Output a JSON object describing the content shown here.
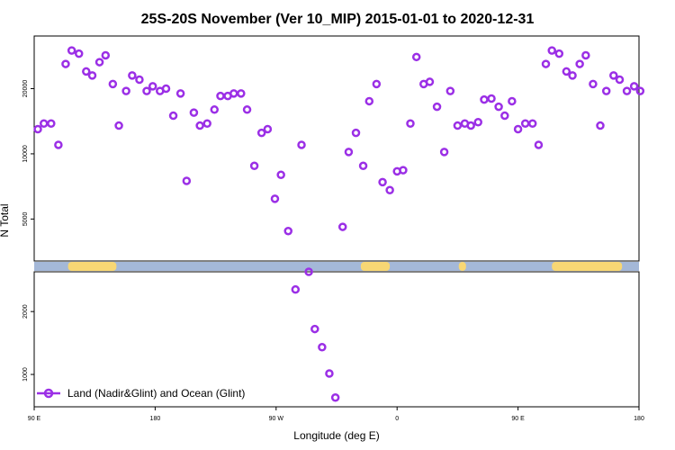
{
  "chart_data": {
    "type": "scatter",
    "title": "25S-20S November (Ver 10_MIP)   2015-01-01 to 2020-12-31",
    "xlabel": "Longitude (deg E)",
    "ylabel": "N Total",
    "xlim": [
      0,
      500
    ],
    "x_ticks": [
      {
        "value": 0,
        "label": "90 E"
      },
      {
        "value": 100,
        "label": "180"
      },
      {
        "value": 200,
        "label": "90 W"
      },
      {
        "value": 300,
        "label": "0"
      },
      {
        "value": 400,
        "label": "90 E"
      },
      {
        "value": 500,
        "label": "180"
      }
    ],
    "y_scale": "log",
    "upper_panel": {
      "ylim": [
        3200,
        35000
      ],
      "y_ticks": [
        {
          "value": 5000,
          "label": "5000"
        },
        {
          "value": 10000,
          "label": "10000"
        },
        {
          "value": 20000,
          "label": "20000"
        }
      ]
    },
    "lower_panel": {
      "ylim": [
        700,
        3100
      ],
      "y_ticks": [
        {
          "value": 1000,
          "label": "1000"
        },
        {
          "value": 2000,
          "label": "2000"
        }
      ]
    },
    "land_ocean_strip": {
      "ocean_color": "#a4b8d8",
      "land_color": "#f8d774",
      "land_segments": [
        [
          28,
          68
        ],
        [
          270,
          294
        ],
        [
          351,
          357
        ],
        [
          428,
          486
        ]
      ]
    },
    "series": [
      {
        "name": "Land (Nadir&Glint) and Ocean (Glint)",
        "color": "#9b2fe6",
        "x": [
          3,
          8,
          14,
          20,
          26,
          31,
          37,
          43,
          48,
          54,
          59,
          65,
          70,
          76,
          81,
          87,
          93,
          98,
          104,
          109,
          115,
          121,
          126,
          132,
          137,
          143,
          149,
          154,
          160,
          165,
          171,
          176,
          182,
          188,
          193,
          199,
          204,
          210,
          216,
          221,
          227,
          232,
          238,
          244,
          249,
          255,
          260,
          266,
          272,
          277,
          283,
          288,
          294,
          300,
          305,
          311,
          316,
          322,
          327,
          333,
          339,
          344,
          350,
          356,
          361,
          367,
          372,
          378,
          384,
          389,
          395,
          400,
          406,
          412,
          417,
          423,
          428,
          434,
          440,
          445,
          451,
          456,
          462,
          468,
          473,
          479,
          484,
          490,
          496,
          501
        ],
        "y": [
          13000,
          13800,
          13800,
          11000,
          26000,
          30000,
          29000,
          24000,
          23000,
          26500,
          28500,
          21000,
          13500,
          19500,
          23000,
          22000,
          19500,
          20500,
          19500,
          20000,
          15000,
          19000,
          7500,
          15500,
          13500,
          13800,
          16000,
          18500,
          18500,
          19000,
          19000,
          16000,
          8800,
          12500,
          13000,
          6200,
          8000,
          4400,
          2550,
          11000,
          3100,
          1650,
          1350,
          1010,
          775,
          4600,
          10200,
          12500,
          8800,
          17500,
          21000,
          7400,
          6800,
          8300,
          8400,
          13800,
          28000,
          21000,
          21500,
          16500,
          10200,
          19500,
          13500,
          13800,
          13500,
          14000,
          17800,
          18000,
          16500,
          15000,
          17500,
          13000,
          13800,
          13800,
          11000,
          26000,
          30000,
          29000,
          24000,
          23000,
          26000,
          28500,
          21000,
          13500,
          19500,
          23000,
          22000,
          19500,
          20500,
          19500
        ]
      }
    ],
    "legend": {
      "placement": "bottom-left",
      "label": "Land (Nadir&Glint) and Ocean (Glint)"
    }
  }
}
